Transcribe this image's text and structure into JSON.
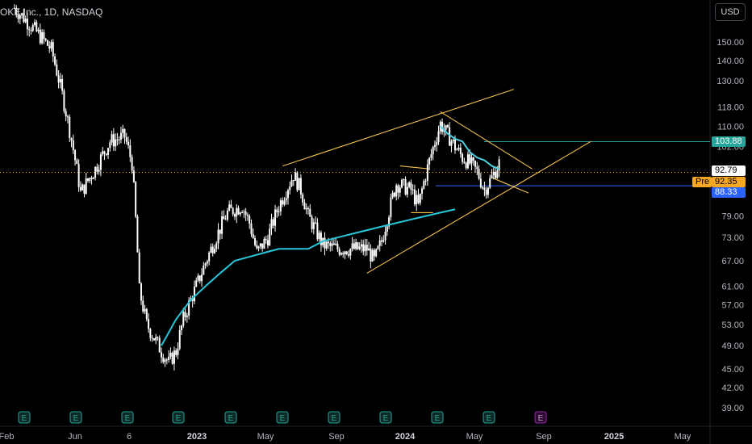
{
  "header": {
    "title": "OKE Inc., 1D, NASDAQ",
    "currency_button": "USD"
  },
  "colors": {
    "background": "#000000",
    "candles": "#ffffff",
    "moving_average_short": "#4dd0e1",
    "moving_average_long": "#26c6da",
    "trendlines": "#f5c04a",
    "resistance_level": "#26a69a",
    "support_level": "#2962ff",
    "last_price_line": "#f5a623",
    "premarket_tag": "#f5a623",
    "earnings_marker": "#26a69a",
    "upcoming_earnings_marker": "#9c27b0"
  },
  "chart_data": {
    "type": "candlestick",
    "title": "OKE Inc., 1D, NASDAQ",
    "y_scale": "log",
    "ylim": [
      36.5,
      165
    ],
    "y_ticks": [
      "150.00",
      "140.00",
      "130.00",
      "118.00",
      "110.00",
      "102.00",
      "94.00",
      "79.00",
      "73.00",
      "67.00",
      "61.00",
      "57.00",
      "53.00",
      "49.00",
      "45.00",
      "42.00",
      "39.00"
    ],
    "x_ticks": [
      {
        "label": "Feb",
        "bold": false
      },
      {
        "label": "Jun",
        "bold": false
      },
      {
        "label": "6",
        "bold": false
      },
      {
        "label": "2023",
        "bold": true
      },
      {
        "label": "May",
        "bold": false
      },
      {
        "label": "Sep",
        "bold": false
      },
      {
        "label": "2024",
        "bold": true
      },
      {
        "label": "May",
        "bold": false
      },
      {
        "label": "Sep",
        "bold": false
      },
      {
        "label": "2025",
        "bold": true
      },
      {
        "label": "May",
        "bold": false
      }
    ],
    "price_path": [
      [
        0,
        170
      ],
      [
        5,
        158
      ],
      [
        10,
        146
      ],
      [
        14,
        116
      ],
      [
        18,
        86
      ],
      [
        22,
        94
      ],
      [
        26,
        104
      ],
      [
        30,
        106
      ],
      [
        32,
        96
      ],
      [
        34,
        60
      ],
      [
        36,
        53
      ],
      [
        40,
        48
      ],
      [
        42,
        46
      ],
      [
        44,
        48
      ],
      [
        46,
        54
      ],
      [
        50,
        62
      ],
      [
        54,
        71
      ],
      [
        58,
        80
      ],
      [
        62,
        82
      ],
      [
        64,
        77
      ],
      [
        66,
        69
      ],
      [
        69,
        73
      ],
      [
        72,
        82
      ],
      [
        76,
        92
      ],
      [
        78,
        87
      ],
      [
        80,
        79
      ],
      [
        84,
        71
      ],
      [
        88,
        70
      ],
      [
        92,
        70
      ],
      [
        96,
        70
      ],
      [
        98,
        67
      ],
      [
        100,
        72
      ],
      [
        104,
        89
      ],
      [
        108,
        87
      ],
      [
        110,
        82
      ],
      [
        112,
        92
      ],
      [
        116,
        111
      ],
      [
        120,
        102
      ],
      [
        122,
        98
      ],
      [
        124,
        96
      ],
      [
        126,
        93
      ],
      [
        128,
        87
      ],
      [
        130,
        91
      ],
      [
        132,
        96
      ]
    ],
    "moving_average": [
      [
        40,
        49
      ],
      [
        44,
        54
      ],
      [
        48,
        58
      ],
      [
        52,
        61
      ],
      [
        56,
        64
      ],
      [
        60,
        67
      ],
      [
        64,
        68
      ],
      [
        68,
        69
      ],
      [
        72,
        70
      ],
      [
        76,
        70
      ],
      [
        80,
        70
      ],
      [
        84,
        72
      ],
      [
        88,
        73
      ],
      [
        92,
        74
      ],
      [
        96,
        75
      ],
      [
        100,
        76
      ],
      [
        104,
        77
      ],
      [
        108,
        78
      ],
      [
        112,
        79
      ],
      [
        116,
        80
      ],
      [
        120,
        81
      ]
    ],
    "short_moving_average": [
      [
        116,
        110
      ],
      [
        118,
        107
      ],
      [
        120,
        105
      ],
      [
        122,
        104
      ],
      [
        124,
        100
      ],
      [
        126,
        98
      ],
      [
        128,
        97
      ],
      [
        130,
        95
      ],
      [
        132,
        94
      ]
    ],
    "price_levels": [
      {
        "name": "resistance",
        "value": 103.88,
        "label": "103.88"
      },
      {
        "name": "last",
        "value": 92.79,
        "label": "92.79"
      },
      {
        "name": "premarket",
        "value": 92.35,
        "label": "92.35",
        "tag": "Pre"
      },
      {
        "name": "support",
        "value": 88.33,
        "label": "88.33"
      }
    ],
    "earnings_markers": {
      "label": "E",
      "count": 10,
      "upcoming_count": 1
    },
    "grid": false,
    "legend": "none"
  }
}
